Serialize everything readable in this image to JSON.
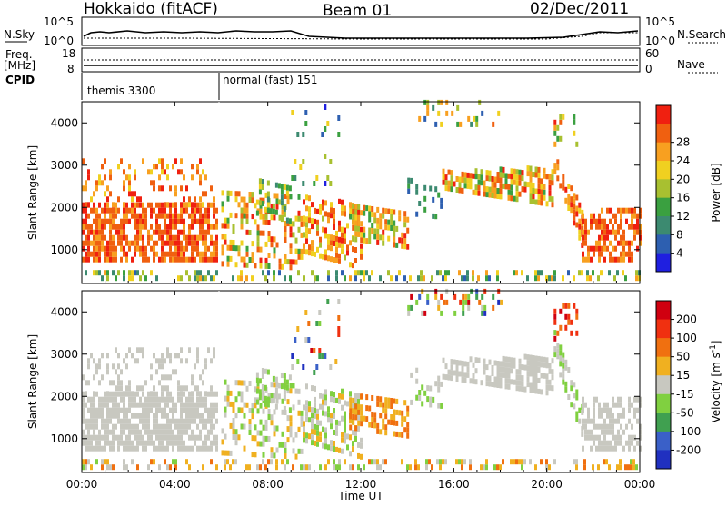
{
  "header": {
    "station": "Hokkaido (fitACF)",
    "beam": "Beam 01",
    "date": "02/Dec/2011"
  },
  "panels": {
    "nsky": {
      "label": "N.Sky",
      "ticks": [
        "10^5",
        "10^0"
      ],
      "right_label": "N.Search",
      "right_ticks": [
        "10^5",
        "10^0"
      ]
    },
    "freq": {
      "label_top": "Freq.",
      "label_unit": "[MHz]",
      "ticks": [
        "18",
        "8"
      ],
      "right_label": "Nave",
      "right_ticks": [
        "60",
        "0"
      ]
    },
    "cpid": {
      "label": "CPID",
      "modes": [
        "themis 3300",
        "normal (fast) 151"
      ]
    }
  },
  "chart_data": [
    {
      "type": "heatmap",
      "name": "power",
      "ylabel": "Slant Range [km]",
      "xlabel": "Time UT",
      "x_ticks": [
        "00:00",
        "04:00",
        "08:00",
        "12:00",
        "16:00",
        "20:00",
        "00:00"
      ],
      "y_ticks": [
        1000,
        2000,
        3000,
        4000
      ],
      "ylim": [
        200,
        4500
      ],
      "colorbar": {
        "label": "Power [dB]",
        "ticks": [
          "4",
          "8",
          "12",
          "16",
          "20",
          "24",
          "28"
        ],
        "colors": [
          "#1f1fe0",
          "#2d5fb0",
          "#3c8a70",
          "#3aa040",
          "#a8c030",
          "#f0d020",
          "#f8a020",
          "#f06010",
          "#f02010"
        ]
      }
    },
    {
      "type": "heatmap",
      "name": "velocity",
      "ylabel": "Slant Range [km]",
      "xlabel": "Time UT",
      "x_ticks": [
        "00:00",
        "04:00",
        "08:00",
        "12:00",
        "16:00",
        "20:00",
        "00:00"
      ],
      "y_ticks": [
        1000,
        2000,
        3000,
        4000
      ],
      "ylim": [
        200,
        4500
      ],
      "colorbar": {
        "label": "Velocity [m s^-1]",
        "ticks": [
          "200",
          "100",
          "50",
          "15",
          "-15",
          "-50",
          "-100",
          "-200"
        ],
        "colors": [
          "#2030c0",
          "#3a60c8",
          "#40a050",
          "#80d040",
          "#c8c8c0",
          "#f0b020",
          "#f07010",
          "#f03010",
          "#d00010"
        ]
      }
    }
  ],
  "axis": {
    "xlabel": "Time UT"
  }
}
